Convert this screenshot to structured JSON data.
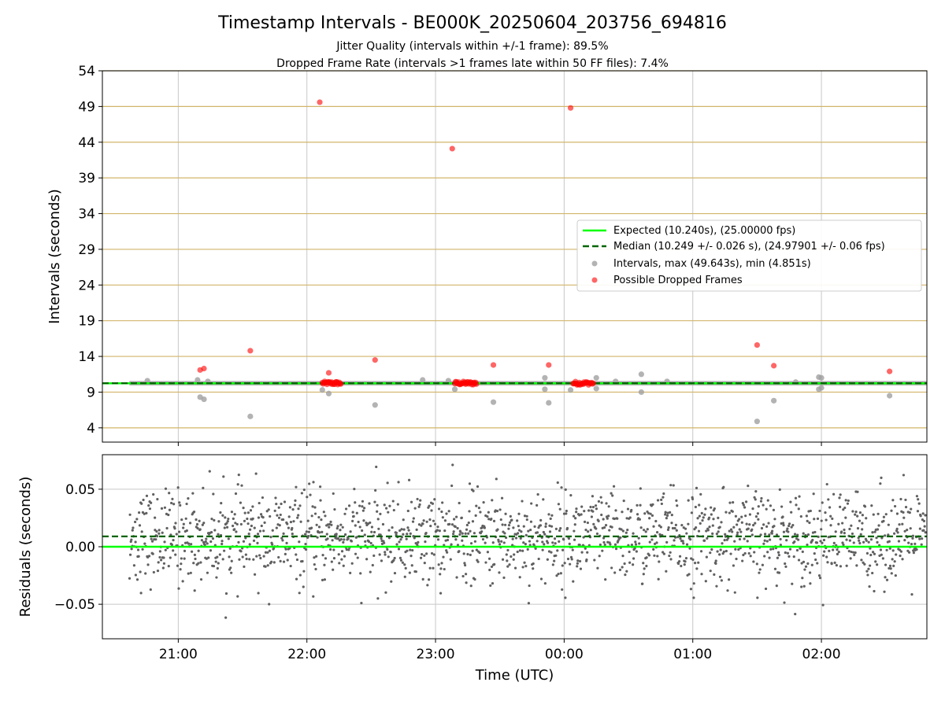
{
  "colors": {
    "expected": "#00ff00",
    "median": "#006400",
    "interval": "#a0a0a0",
    "dropped": "#ff0000",
    "residual": "#606060",
    "hgrid": "#d2b56a",
    "vgrid": "#c8c8c8"
  },
  "chart_data": {
    "type": "scatter",
    "title": "Timestamp Intervals - BE000K_20250604_203756_694816",
    "subtitle_lines": [
      "Jitter Quality (intervals within +/-1 frame): 89.5%",
      "Dropped Frame Rate (intervals >1 frames late within 50 FF files): 7.4%"
    ],
    "x_ticks": [
      "21:00",
      "22:00",
      "23:00",
      "00:00",
      "01:00",
      "02:00"
    ],
    "x_tick_hours": [
      21,
      22,
      23,
      24,
      25,
      26
    ],
    "xlim_hours": [
      20.41,
      26.82
    ],
    "xlabel": "Time (UTC)",
    "top": {
      "ylabel": "Intervals (seconds)",
      "ylim": [
        2,
        54
      ],
      "yticks": [
        4,
        9,
        14,
        19,
        24,
        29,
        34,
        39,
        44,
        49,
        54
      ],
      "expected": 10.24,
      "median": 10.249,
      "legend": {
        "position": "center-right",
        "entries": [
          "Expected (10.240s), (25.00000 fps)",
          "Median (10.249 +/- 0.026 s), (24.97901 +/- 0.06 fps)",
          "Intervals, max (49.643s), min (4.851s)",
          "Possible Dropped Frames"
        ]
      },
      "dropped_points": [
        [
          21.17,
          12.1
        ],
        [
          21.2,
          12.3
        ],
        [
          21.56,
          14.8
        ],
        [
          22.1,
          49.6
        ],
        [
          22.17,
          11.7
        ],
        [
          22.53,
          13.5
        ],
        [
          23.13,
          43.1
        ],
        [
          23.45,
          12.8
        ],
        [
          23.88,
          12.8
        ],
        [
          24.05,
          48.8
        ],
        [
          25.5,
          15.6
        ],
        [
          25.63,
          12.7
        ],
        [
          26.53,
          11.9
        ]
      ],
      "gray_outliers": [
        [
          20.76,
          10.6
        ],
        [
          21.15,
          10.7
        ],
        [
          21.17,
          8.3
        ],
        [
          21.2,
          8.0
        ],
        [
          21.23,
          10.5
        ],
        [
          21.56,
          5.6
        ],
        [
          22.12,
          9.3
        ],
        [
          22.17,
          8.8
        ],
        [
          22.53,
          7.2
        ],
        [
          22.9,
          10.7
        ],
        [
          23.1,
          10.6
        ],
        [
          23.15,
          9.4
        ],
        [
          23.45,
          7.6
        ],
        [
          23.85,
          11.0
        ],
        [
          23.85,
          9.4
        ],
        [
          23.88,
          7.5
        ],
        [
          24.05,
          9.3
        ],
        [
          24.25,
          11.0
        ],
        [
          24.25,
          9.5
        ],
        [
          24.4,
          10.5
        ],
        [
          24.6,
          11.5
        ],
        [
          24.6,
          9.0
        ],
        [
          24.8,
          10.5
        ],
        [
          25.5,
          4.9
        ],
        [
          25.63,
          7.8
        ],
        [
          25.8,
          10.4
        ],
        [
          25.98,
          11.1
        ],
        [
          26.0,
          11.0
        ],
        [
          25.98,
          9.4
        ],
        [
          26.0,
          9.6
        ],
        [
          26.53,
          8.5
        ]
      ],
      "dropped_clusters": [
        [
          22.12,
          22.27
        ],
        [
          23.15,
          23.32
        ],
        [
          24.07,
          24.23
        ]
      ]
    },
    "bottom": {
      "ylabel": "Residuals (seconds)",
      "ylim": [
        -0.08,
        0.08
      ],
      "yticks": [
        -0.05,
        0.0,
        0.05
      ],
      "ytick_labels": [
        "−0.05",
        "0.00",
        "0.05"
      ],
      "expected": 0.0,
      "median": 0.009
    }
  }
}
